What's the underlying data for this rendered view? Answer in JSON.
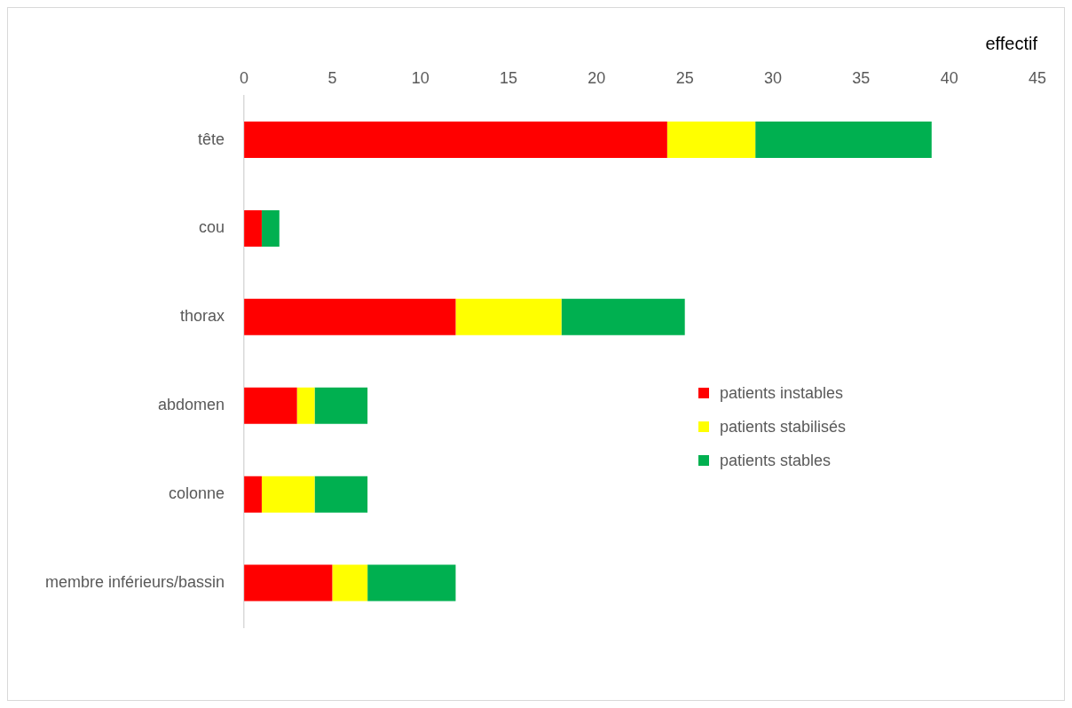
{
  "chart_data": {
    "type": "bar",
    "orientation": "horizontal",
    "stacked": true,
    "xlabel": "effectif",
    "categories": [
      "tête",
      "cou",
      "thorax",
      "abdomen",
      "colonne",
      "membre inférieurs/bassin"
    ],
    "series": [
      {
        "name": "patients instables",
        "color": "#ff0000",
        "values": [
          24,
          1,
          12,
          3,
          1,
          5
        ]
      },
      {
        "name": "patients stabilisés",
        "color": "#ffff00",
        "values": [
          5,
          0,
          6,
          1,
          3,
          2
        ]
      },
      {
        "name": "patients stables",
        "color": "#00b050",
        "values": [
          10,
          1,
          7,
          3,
          3,
          5
        ]
      }
    ],
    "xlim": [
      0,
      45
    ],
    "xticks": [
      0,
      5,
      10,
      15,
      20,
      25,
      30,
      35,
      40,
      45
    ],
    "grid": false,
    "legend": "right"
  }
}
